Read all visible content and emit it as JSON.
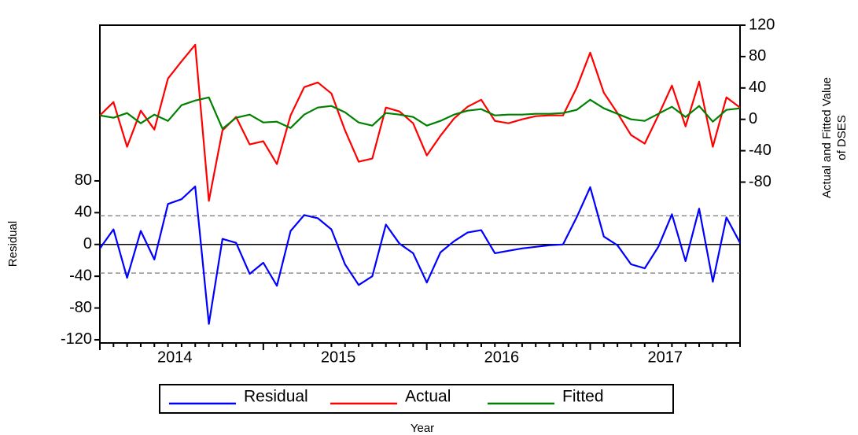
{
  "chart_data": {
    "type": "line",
    "categories": [
      null,
      null,
      null,
      null,
      null,
      "2014",
      null,
      null,
      null,
      null,
      null,
      null,
      null,
      null,
      null,
      null,
      null,
      "2015",
      null,
      null,
      null,
      null,
      null,
      null,
      null,
      null,
      null,
      null,
      null,
      "2016",
      null,
      null,
      null,
      null,
      null,
      null,
      null,
      null,
      null,
      null,
      null,
      "2017",
      null,
      null,
      null,
      null,
      null,
      null
    ],
    "series": [
      {
        "name": "Residual",
        "color": "#0000ff",
        "axis": "y",
        "values": [
          -5,
          19,
          -42,
          17,
          -19,
          51,
          57,
          73,
          -100,
          7,
          2,
          -37,
          -23,
          -52,
          17,
          37,
          33,
          19,
          -25,
          -51,
          -40,
          25,
          1,
          -11,
          -48,
          -10,
          4,
          15,
          18,
          -11,
          -8,
          -5,
          -3,
          -1,
          0,
          34,
          72,
          10,
          -1,
          -25,
          -30,
          -3,
          38,
          -21,
          45,
          -47,
          34,
          2
        ]
      },
      {
        "name": "Actual",
        "color": "#ff0000",
        "axis": "y2",
        "values": [
          5,
          22,
          -35,
          11,
          -13,
          52,
          74,
          95,
          -104,
          -14,
          3,
          -32,
          -28,
          -57,
          5,
          41,
          47,
          33,
          -14,
          -54,
          -50,
          15,
          10,
          -5,
          -46,
          -21,
          1,
          16,
          25,
          -2,
          -5,
          0,
          4,
          5,
          5,
          40,
          85,
          34,
          8,
          -20,
          -31,
          5,
          43,
          -9,
          48,
          -35,
          28,
          15
        ]
      },
      {
        "name": "Fitted",
        "color": "#008000",
        "axis": "y2",
        "values": [
          5,
          2,
          8,
          -5,
          6,
          -2,
          18,
          24,
          28,
          -12,
          2,
          6,
          -4,
          -3,
          -11,
          6,
          15,
          17,
          9,
          -4,
          -8,
          8,
          6,
          3,
          -8,
          -2,
          6,
          11,
          13,
          5,
          6,
          6,
          7,
          7,
          8,
          12,
          25,
          14,
          7,
          0,
          -2,
          7,
          16,
          3,
          17,
          -3,
          12,
          14
        ]
      }
    ],
    "ylabel": "Residual",
    "y2label": [
      "Actual and Fitted Value",
      "of DSES"
    ],
    "xlabel": "Year",
    "ylim": [
      -124,
      276
    ],
    "yticks": [
      -120,
      -80,
      -40,
      0,
      40,
      80
    ],
    "y2lim": [
      -285,
      120
    ],
    "y2ticks": [
      -80,
      -40,
      0,
      40,
      80,
      120
    ],
    "hlines": [
      {
        "value": 0,
        "style": "solid"
      },
      {
        "value": 36,
        "style": "dashed"
      },
      {
        "value": -36,
        "style": "dashed"
      }
    ]
  }
}
